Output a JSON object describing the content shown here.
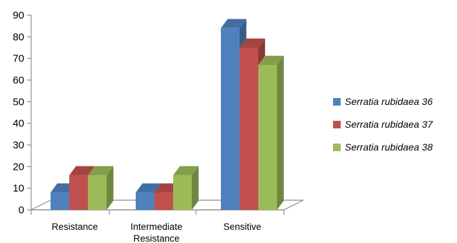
{
  "chart_data": {
    "type": "bar",
    "categories": [
      "Resistance",
      "Intermediate Resistance",
      "Sensitive"
    ],
    "category_label_lines": [
      [
        "Resistance"
      ],
      [
        "Intermediate",
        "Resistance"
      ],
      [
        "Sensitive"
      ]
    ],
    "series": [
      {
        "name": "Serratia rubidaea 36",
        "legend_label": "Serratia rubidaea 36",
        "values": [
          8,
          8,
          84
        ],
        "color": "#4f81bd"
      },
      {
        "name": "Serratia rubidaea 37",
        "legend_label": "Serratia rubidaea 37",
        "values": [
          16,
          8,
          75
        ],
        "color": "#c0504d"
      },
      {
        "name": "Serratia rubidaea 38",
        "legend_label": "Serratia rubidaea 38",
        "values": [
          16,
          16,
          67
        ],
        "color": "#9bbb59"
      }
    ],
    "ylim": [
      0,
      90
    ],
    "yticks": [
      0,
      10,
      20,
      30,
      40,
      50,
      60,
      70,
      80,
      90
    ],
    "xlabel": "",
    "ylabel": "",
    "title": "",
    "grid": false,
    "legend_position": "right",
    "style": "3d-clustered-column"
  }
}
